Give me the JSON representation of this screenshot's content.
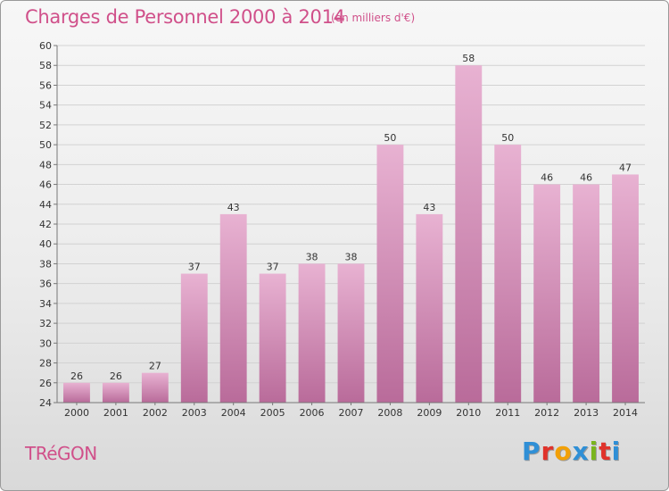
{
  "title": "Charges de Personnel 2000 à 2014",
  "subtitle": "(en milliers d'€)",
  "commune": "TRéGON",
  "logo_text": "Proxiti",
  "colors": {
    "title": "#d0508a",
    "bar_top": "#e8b2d2",
    "bar_bottom": "#b96b9a",
    "logo": [
      "#2f8fd6",
      "#e0332b",
      "#f2a007",
      "#2f8fd6",
      "#7ab51d",
      "#e0332b",
      "#2f8fd6"
    ]
  },
  "chart_data": {
    "type": "bar",
    "categories": [
      "2000",
      "2001",
      "2002",
      "2003",
      "2004",
      "2005",
      "2006",
      "2007",
      "2008",
      "2009",
      "2010",
      "2011",
      "2012",
      "2013",
      "2014"
    ],
    "values": [
      26,
      26,
      27,
      37,
      43,
      37,
      38,
      38,
      50,
      43,
      58,
      50,
      46,
      46,
      47
    ],
    "ylim": [
      24,
      60
    ],
    "yticks": [
      24,
      26,
      28,
      30,
      32,
      34,
      36,
      38,
      40,
      42,
      44,
      46,
      48,
      50,
      52,
      54,
      56,
      58,
      60
    ],
    "grid": true,
    "data_labels": true
  }
}
